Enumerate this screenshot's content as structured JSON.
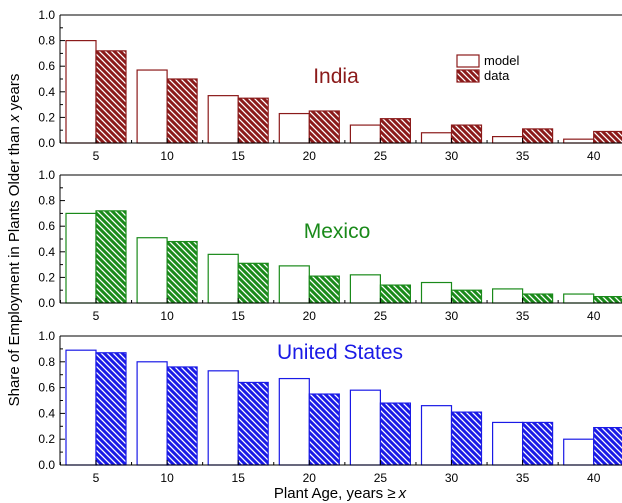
{
  "figure": {
    "ylabel_prefix": "Share of Employment in Plants Older than ",
    "ylabel_var": "x",
    "ylabel_suffix": " years",
    "xlabel_prefix": "Plant Age, years ",
    "xlabel_symbol": "≥",
    "xlabel_var": "x"
  },
  "legend": {
    "model": "model",
    "data": "data"
  },
  "chart_data": [
    {
      "type": "bar",
      "title": "India",
      "color": "#8b1a1a",
      "categories": [
        "5",
        "10",
        "15",
        "20",
        "25",
        "30",
        "35",
        "40"
      ],
      "ylim": [
        0,
        1.0
      ],
      "yticks": [
        "0.0",
        "0.2",
        "0.4",
        "0.6",
        "0.8",
        "1.0"
      ],
      "series": [
        {
          "name": "model",
          "values": [
            0.8,
            0.57,
            0.37,
            0.23,
            0.14,
            0.08,
            0.05,
            0.03
          ]
        },
        {
          "name": "data",
          "values": [
            0.72,
            0.5,
            0.35,
            0.25,
            0.19,
            0.14,
            0.11,
            0.09
          ]
        }
      ]
    },
    {
      "type": "bar",
      "title": "Mexico",
      "color": "#1a8a1a",
      "categories": [
        "5",
        "10",
        "15",
        "20",
        "25",
        "30",
        "35",
        "40"
      ],
      "ylim": [
        0,
        1.0
      ],
      "yticks": [
        "0.0",
        "0.2",
        "0.4",
        "0.6",
        "0.8",
        "1.0"
      ],
      "series": [
        {
          "name": "model",
          "values": [
            0.7,
            0.51,
            0.38,
            0.29,
            0.22,
            0.16,
            0.11,
            0.07
          ]
        },
        {
          "name": "data",
          "values": [
            0.72,
            0.48,
            0.31,
            0.21,
            0.14,
            0.1,
            0.07,
            0.05
          ]
        }
      ]
    },
    {
      "type": "bar",
      "title": "United States",
      "color": "#1a1ae6",
      "categories": [
        "5",
        "10",
        "15",
        "20",
        "25",
        "30",
        "35",
        "40"
      ],
      "ylim": [
        0,
        1.0
      ],
      "yticks": [
        "0.0",
        "0.2",
        "0.4",
        "0.6",
        "0.8",
        "1.0"
      ],
      "series": [
        {
          "name": "model",
          "values": [
            0.89,
            0.8,
            0.73,
            0.67,
            0.58,
            0.46,
            0.33,
            0.2
          ]
        },
        {
          "name": "data",
          "values": [
            0.87,
            0.76,
            0.64,
            0.55,
            0.48,
            0.41,
            0.33,
            0.29
          ]
        }
      ]
    }
  ]
}
